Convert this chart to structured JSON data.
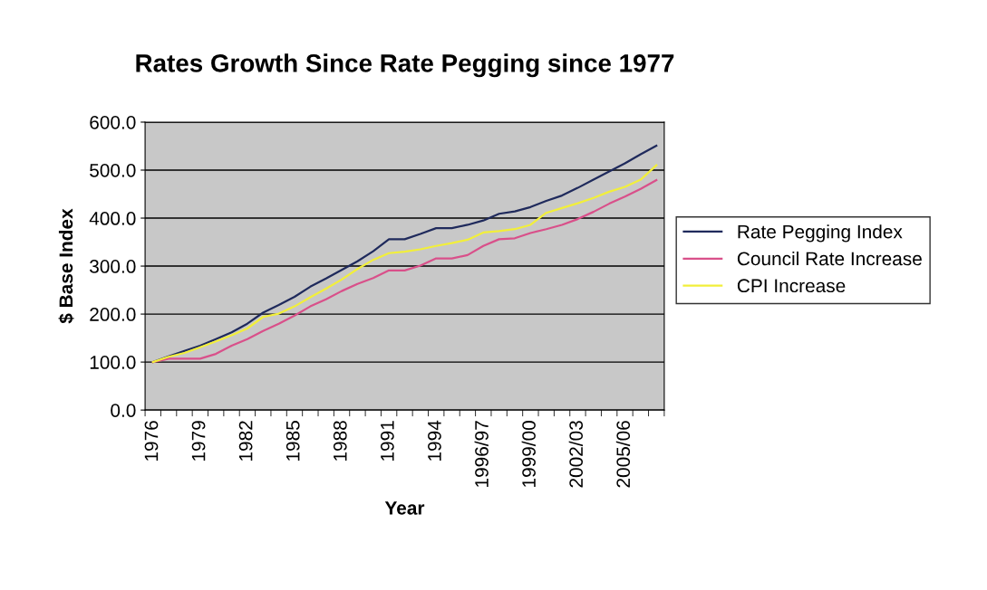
{
  "chart_data": {
    "type": "line",
    "title": "Rates Growth Since Rate Pegging since 1977",
    "xlabel": "Year",
    "ylabel": "$ Base Index",
    "categories": [
      "1976",
      null,
      null,
      "1979",
      null,
      null,
      "1982",
      null,
      null,
      "1985",
      null,
      null,
      "1988",
      null,
      null,
      "1991",
      null,
      null,
      "1994",
      null,
      null,
      "1996/97",
      null,
      null,
      "1999/00",
      null,
      null,
      "2002/03",
      null,
      null,
      "2005/06",
      null,
      null
    ],
    "series": [
      {
        "name": "Rate Pegging Index",
        "color": "#1f2a5c",
        "values": [
          100,
          112,
          123,
          134,
          148,
          162,
          180,
          203,
          219,
          236,
          257,
          274,
          292,
          310,
          331,
          356,
          356,
          367,
          379,
          379,
          386,
          395,
          409,
          414,
          423,
          436,
          447,
          463,
          480,
          497,
          514,
          533,
          551
        ]
      },
      {
        "name": "Council Rate Increase",
        "color": "#d9508a",
        "values": [
          100,
          107,
          107,
          107,
          117,
          134,
          148,
          165,
          180,
          197,
          216,
          231,
          248,
          263,
          275,
          291,
          291,
          301,
          316,
          316,
          323,
          342,
          356,
          358,
          369,
          377,
          386,
          398,
          413,
          430,
          445,
          461,
          479
        ]
      },
      {
        "name": "CPI Increase",
        "color": "#f2ef3a",
        "values": [
          100,
          111,
          119,
          131,
          143,
          156,
          170,
          194,
          201,
          216,
          235,
          253,
          272,
          294,
          313,
          327,
          330,
          335,
          342,
          348,
          355,
          370,
          373,
          377,
          386,
          411,
          421,
          431,
          442,
          455,
          465,
          480,
          510
        ]
      }
    ],
    "ylim": [
      0,
      600
    ],
    "yticks": [
      {
        "value": 0,
        "label": "0.0"
      },
      {
        "value": 100,
        "label": "100.0"
      },
      {
        "value": 200,
        "label": "200.0"
      },
      {
        "value": 300,
        "label": "300.0"
      },
      {
        "value": 400,
        "label": "400.0"
      },
      {
        "value": 500,
        "label": "500.0"
      },
      {
        "value": 600,
        "label": "600.0"
      }
    ],
    "grid": "y",
    "legend": "right",
    "marker": "none",
    "line_style": "solid"
  }
}
